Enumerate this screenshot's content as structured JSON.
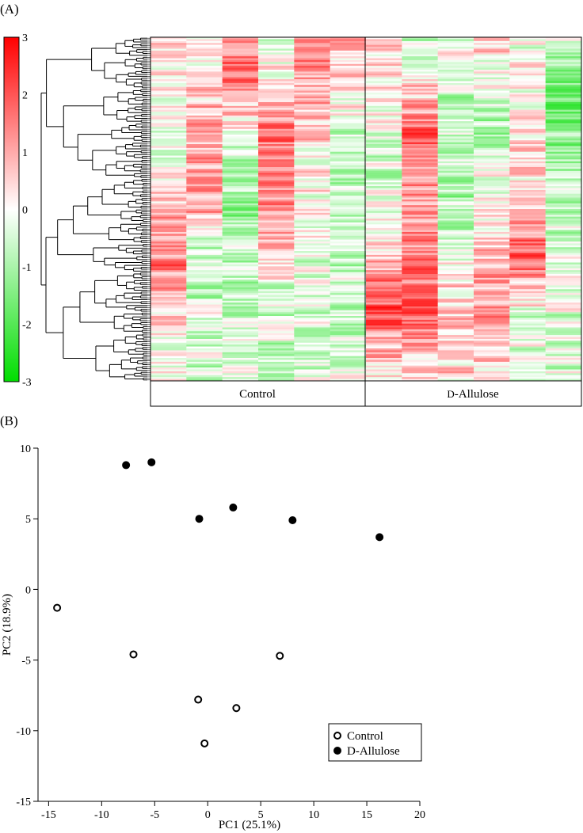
{
  "panel_a_label": "(A)",
  "panel_b_label": "(B)",
  "chart_data": [
    {
      "type": "heatmap",
      "title": "",
      "colorbar": {
        "min": -3,
        "max": 3,
        "ticks": [
          "3",
          "2",
          "1",
          "0",
          "-1",
          "-2",
          "-3"
        ],
        "colors": {
          "high": "#ff0000",
          "mid": "#ffffff",
          "low": "#00dd00"
        }
      },
      "groups": [
        {
          "label": "Control",
          "columns": 6
        },
        {
          "label": "D-Allulose",
          "label_prefix": "D",
          "label_suffix": "-Allulose",
          "columns": 6
        }
      ],
      "rows": 180,
      "dendrogram": "row clustering (hierarchical)",
      "column_profiles": [
        [
          [
            0.0,
            0.3
          ],
          [
            0.3,
            -0.3
          ],
          [
            0.65,
            1.6
          ],
          [
            0.8,
            0.6
          ],
          [
            1.0,
            -0.2
          ]
        ],
        [
          [
            0.0,
            0.2
          ],
          [
            0.5,
            1.4
          ],
          [
            0.6,
            -0.8
          ],
          [
            1.0,
            -0.4
          ]
        ],
        [
          [
            0.0,
            1.6
          ],
          [
            0.1,
            2.2
          ],
          [
            0.4,
            -1.6
          ],
          [
            0.6,
            -0.8
          ],
          [
            1.0,
            -0.3
          ]
        ],
        [
          [
            0.0,
            -0.8
          ],
          [
            0.25,
            1.5
          ],
          [
            0.55,
            1.2
          ],
          [
            0.75,
            -0.5
          ],
          [
            1.0,
            -0.6
          ]
        ],
        [
          [
            0.0,
            1.8
          ],
          [
            0.3,
            0.6
          ],
          [
            0.7,
            -0.4
          ],
          [
            1.0,
            -0.3
          ]
        ],
        [
          [
            0.0,
            0.8
          ],
          [
            0.35,
            -0.8
          ],
          [
            0.7,
            -0.6
          ],
          [
            1.0,
            -0.5
          ]
        ],
        [
          [
            0.0,
            0.7
          ],
          [
            0.35,
            -0.6
          ],
          [
            0.6,
            0.4
          ],
          [
            0.8,
            2.4
          ],
          [
            1.0,
            0.3
          ]
        ],
        [
          [
            0.0,
            -0.7
          ],
          [
            0.3,
            2.0
          ],
          [
            0.45,
            1.2
          ],
          [
            0.8,
            2.1
          ],
          [
            1.0,
            0.2
          ]
        ],
        [
          [
            0.0,
            -0.4
          ],
          [
            0.5,
            -0.9
          ],
          [
            0.75,
            0.6
          ],
          [
            1.0,
            0.4
          ]
        ],
        [
          [
            0.0,
            0.5
          ],
          [
            0.3,
            -1.0
          ],
          [
            0.65,
            1.0
          ],
          [
            0.85,
            1.6
          ],
          [
            1.0,
            -0.4
          ]
        ],
        [
          [
            0.0,
            -0.2
          ],
          [
            0.4,
            0.5
          ],
          [
            0.65,
            2.0
          ],
          [
            0.8,
            -0.3
          ],
          [
            1.0,
            -0.6
          ]
        ],
        [
          [
            0.0,
            -0.6
          ],
          [
            0.2,
            -1.8
          ],
          [
            0.55,
            -0.5
          ],
          [
            1.0,
            -0.3
          ]
        ]
      ]
    },
    {
      "type": "scatter",
      "title": "",
      "xlabel": "PC1 (25.1%)",
      "ylabel": "PC2 (18.9%)",
      "xlim": [
        -16,
        20
      ],
      "ylim": [
        -15,
        10
      ],
      "xticks": [
        -15,
        -10,
        -5,
        0,
        5,
        10,
        15,
        20
      ],
      "yticks": [
        10,
        5,
        0,
        -5,
        -10,
        -15
      ],
      "legend_position": "bottom-right",
      "series": [
        {
          "name": "Control",
          "marker": "open-circle",
          "points": [
            {
              "x": -14.2,
              "y": -1.3
            },
            {
              "x": -7.0,
              "y": -4.6
            },
            {
              "x": -0.9,
              "y": -7.8
            },
            {
              "x": -0.3,
              "y": -10.9
            },
            {
              "x": 2.7,
              "y": -8.4
            },
            {
              "x": 6.8,
              "y": -4.7
            }
          ]
        },
        {
          "name": "D-Allulose",
          "marker": "filled-circle",
          "points": [
            {
              "x": -7.7,
              "y": 8.8
            },
            {
              "x": -5.3,
              "y": 9.0
            },
            {
              "x": -0.8,
              "y": 5.0
            },
            {
              "x": 2.4,
              "y": 5.8
            },
            {
              "x": 8.0,
              "y": 4.9
            },
            {
              "x": 16.2,
              "y": 3.7
            }
          ]
        }
      ]
    }
  ]
}
